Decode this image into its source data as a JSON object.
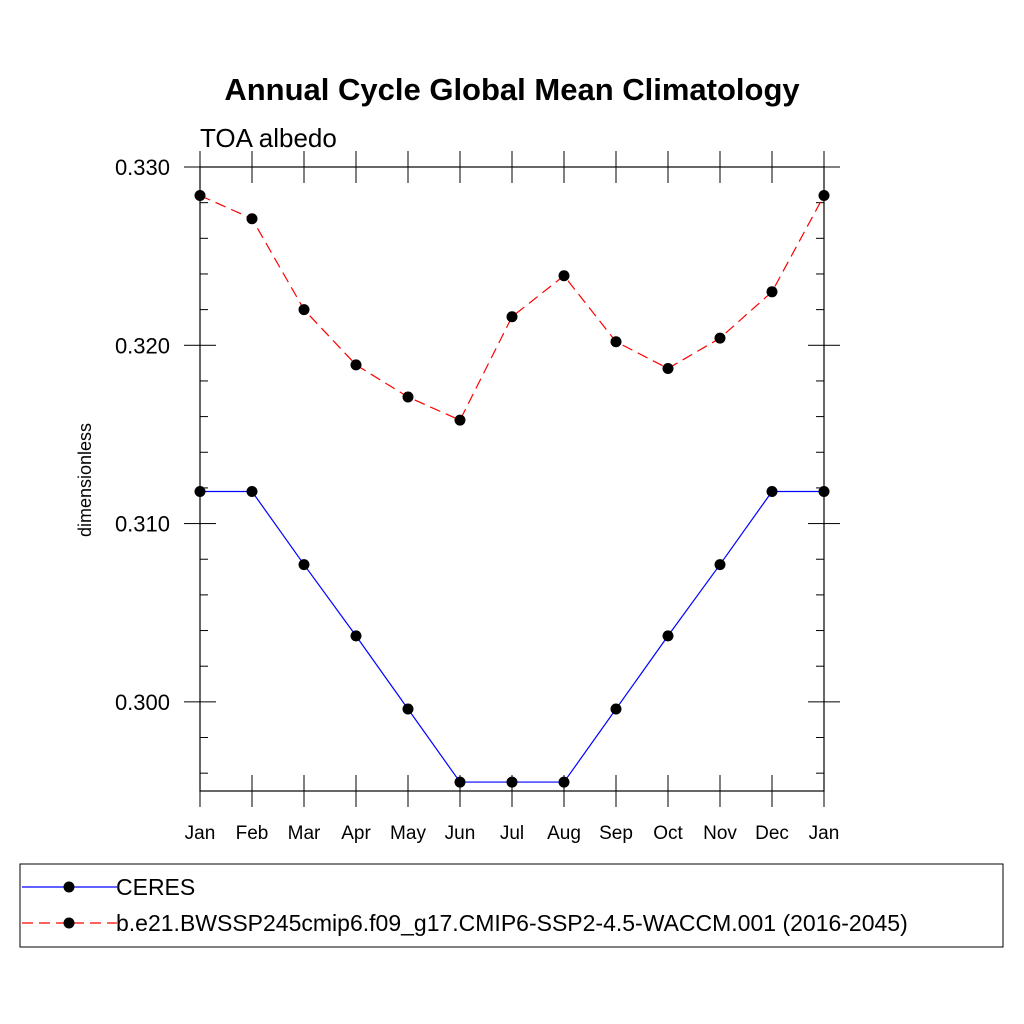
{
  "chart_data": {
    "type": "line",
    "title": "Annual Cycle Global Mean Climatology",
    "subtitle": "TOA albedo",
    "xlabel": "",
    "ylabel": "dimensionless",
    "categories": [
      "Jan",
      "Feb",
      "Mar",
      "Apr",
      "May",
      "Jun",
      "Jul",
      "Aug",
      "Sep",
      "Oct",
      "Nov",
      "Dec",
      "Jan"
    ],
    "ylim": [
      0.295,
      0.33
    ],
    "yticks": [
      0.3,
      0.31,
      0.32,
      0.33
    ],
    "ytick_labels": [
      "0.300",
      "0.310",
      "0.320",
      "0.330"
    ],
    "series": [
      {
        "name": "CERES",
        "color": "#0000ff",
        "dash": "solid",
        "marker": "filled-circle",
        "values": [
          0.3118,
          0.3118,
          0.3077,
          0.3037,
          0.2996,
          0.2955,
          0.2955,
          0.2955,
          0.2996,
          0.3037,
          0.3077,
          0.3118,
          0.3118
        ]
      },
      {
        "name": "b.e21.BWSSP245cmip6.f09_g17.CMIP6-SSP2-4.5-WACCM.001 (2016-2045)",
        "color": "#ff0000",
        "dash": "dashed",
        "marker": "filled-circle",
        "values": [
          0.3284,
          0.3271,
          0.322,
          0.3189,
          0.3171,
          0.3158,
          0.3216,
          0.3239,
          0.3202,
          0.3187,
          0.3204,
          0.323,
          0.3284
        ]
      }
    ],
    "legend_position": "bottom"
  }
}
